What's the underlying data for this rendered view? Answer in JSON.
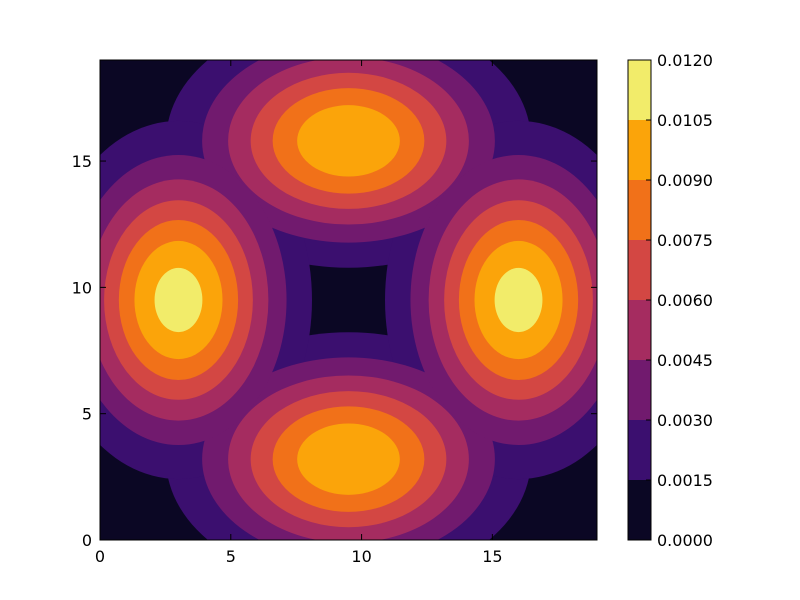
{
  "chart_data": {
    "type": "contour",
    "title": "",
    "xlabel": "",
    "ylabel": "",
    "xlim": [
      0,
      19
    ],
    "ylim": [
      0,
      19
    ],
    "x_ticks": [
      0,
      5,
      10,
      15
    ],
    "y_ticks": [
      0,
      5,
      10,
      15
    ],
    "x_tick_labels": [
      "0",
      "5",
      "10",
      "15"
    ],
    "y_tick_labels": [
      "0",
      "5",
      "10",
      "15"
    ],
    "colormap": "inferno",
    "levels": [
      0.0,
      0.0015,
      0.003,
      0.0045,
      0.006,
      0.0075,
      0.009,
      0.0105,
      0.012
    ],
    "level_labels": [
      "0.0000",
      "0.0015",
      "0.0030",
      "0.0045",
      "0.0060",
      "0.0075",
      "0.0090",
      "0.0105",
      "0.0120"
    ],
    "level_colors": [
      "#0b0724",
      "#3b0f6f",
      "#711a6e",
      "#a52c60",
      "#d34743",
      "#f17119",
      "#fba40a",
      "#f2ec6a"
    ],
    "peaks": [
      {
        "name": "top",
        "x": 9.5,
        "y": 15.8,
        "max": 0.0105
      },
      {
        "name": "bottom",
        "x": 9.5,
        "y": 3.2,
        "max": 0.0105
      },
      {
        "name": "left",
        "x": 3.0,
        "y": 9.5,
        "max": 0.0112
      },
      {
        "name": "right",
        "x": 16.0,
        "y": 9.5,
        "max": 0.0112
      }
    ],
    "grid": false,
    "colorbar": "right"
  }
}
